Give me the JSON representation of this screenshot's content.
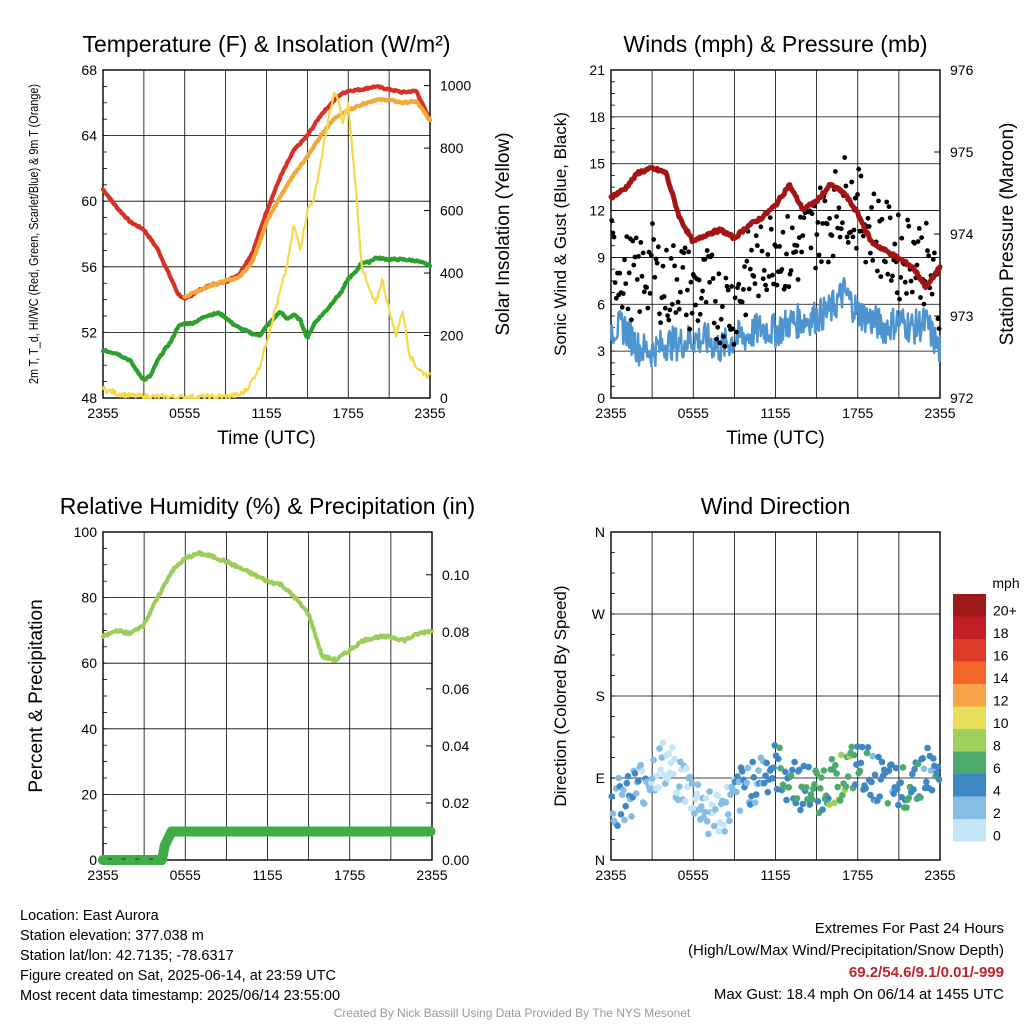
{
  "chart_data": [
    {
      "type": "line",
      "title": "Temperature (F) & Insolation (W/m²)",
      "xlabel": "Time (UTC)",
      "ylabel": "2m T, T_d, HI/WC (Red, Green, Scarlet/Blue) & 9m T (Orange)",
      "y2label": "Solar Insolation (Yellow)",
      "x_ticks": [
        "2355",
        "0555",
        "1155",
        "1755",
        "2355"
      ],
      "ylim": [
        48,
        70
      ],
      "y_ticks": [
        48,
        52,
        56,
        60,
        64,
        68
      ],
      "y2lim": [
        0,
        1050
      ],
      "y2_ticks": [
        0,
        200,
        400,
        600,
        800,
        1000
      ],
      "grid": true,
      "series": [
        {
          "color": "#d73027",
          "axis": "left",
          "x": [
            0,
            1,
            2,
            3,
            4,
            5,
            5.5,
            6,
            7,
            8,
            9,
            10,
            11,
            12,
            13,
            14,
            15,
            16,
            17,
            17.5,
            18,
            19,
            20,
            21,
            22,
            23,
            24
          ],
          "values": [
            62,
            60.8,
            59.8,
            59.3,
            58,
            56,
            55,
            54.6,
            55.2,
            55.6,
            55.8,
            56.3,
            57.8,
            60.5,
            62.8,
            64.6,
            65.6,
            67.0,
            68.0,
            68.4,
            68.6,
            68.7,
            68.9,
            68.7,
            68.5,
            68.6,
            66.6
          ]
        },
        {
          "color": "#f2a93b",
          "axis": "left",
          "x": [
            6,
            8,
            10,
            11,
            12,
            13,
            14,
            15,
            16,
            17,
            18,
            19,
            20,
            21,
            22,
            23,
            24
          ],
          "values": [
            54.8,
            55.6,
            56.1,
            57.2,
            59.8,
            61.5,
            63,
            64.2,
            65.6,
            66.8,
            67.3,
            67.7,
            68,
            68,
            67.8,
            67.9,
            66.6
          ]
        },
        {
          "color": "#2ca02c",
          "axis": "left",
          "x": [
            0,
            1,
            2,
            2.5,
            3,
            3.5,
            4,
            4.5,
            5,
            5.5,
            6,
            6.5,
            7,
            7.5,
            8,
            8.5,
            9,
            9.5,
            10,
            10.5,
            11,
            11.5,
            12,
            12.5,
            13,
            13.5,
            14,
            14.5,
            15,
            15.5,
            16,
            16.5,
            17,
            17.5,
            18,
            18.5,
            19,
            19.5,
            20,
            21,
            22,
            23,
            24
          ],
          "values": [
            51.2,
            51,
            50.5,
            49.8,
            49.2,
            49.5,
            50.5,
            51.2,
            51.8,
            52.8,
            53.0,
            53.0,
            53.2,
            53.5,
            53.6,
            53.7,
            53.4,
            53.0,
            52.7,
            52.5,
            52.3,
            52.2,
            52.8,
            53.3,
            53.8,
            53.3,
            53.6,
            53.2,
            52.0,
            53.0,
            53.5,
            54.0,
            54.6,
            55.1,
            56,
            56.4,
            57.1,
            57.1,
            57.4,
            57.3,
            57.3,
            57.2,
            56.9
          ]
        },
        {
          "color": "#f5d94a",
          "axis": "right",
          "x": [
            0,
            1,
            2,
            3,
            4,
            5,
            6,
            7,
            8,
            9,
            10,
            10.5,
            11,
            11.5,
            12,
            12.5,
            13,
            13.5,
            14,
            14.5,
            15,
            15.5,
            16,
            16.5,
            17,
            17.3,
            17.6,
            18,
            18.5,
            19,
            19.5,
            20,
            20.5,
            21,
            21.5,
            22,
            22.5,
            23,
            23.5,
            24
          ],
          "values": [
            30,
            15,
            8,
            5,
            4,
            3,
            3,
            3,
            4,
            5,
            10,
            25,
            60,
            100,
            180,
            260,
            340,
            420,
            550,
            480,
            600,
            640,
            760,
            880,
            980,
            950,
            880,
            940,
            700,
            420,
            350,
            300,
            380,
            280,
            200,
            280,
            140,
            100,
            80,
            70
          ]
        }
      ]
    },
    {
      "type": "line",
      "title": "Winds (mph) & Pressure (mb)",
      "xlabel": "Time (UTC)",
      "ylabel": "Sonic Wind & Gust (Blue, Black)",
      "y2label": "Station Pressure (Maroon)",
      "x_ticks": [
        "2355",
        "0555",
        "1155",
        "1755",
        "2355"
      ],
      "ylim": [
        0,
        21
      ],
      "y_ticks": [
        0,
        3,
        6,
        9,
        12,
        15,
        18,
        21
      ],
      "y2lim": [
        972,
        976
      ],
      "y2_ticks": [
        972,
        973,
        974,
        975,
        976
      ],
      "grid": true,
      "series": [
        {
          "name": "Pressure",
          "color": "#a31515",
          "axis": "right",
          "x": [
            0,
            1,
            2,
            3,
            4,
            5,
            6,
            7,
            8,
            9,
            10,
            11,
            12,
            13,
            14,
            15,
            16,
            17,
            18,
            19,
            20,
            21,
            22,
            23,
            24
          ],
          "values": [
            974.45,
            974.55,
            974.75,
            974.8,
            974.75,
            974.2,
            973.9,
            974.0,
            974.05,
            973.95,
            974.1,
            974.2,
            974.35,
            974.6,
            974.3,
            974.4,
            974.6,
            974.5,
            974.25,
            973.9,
            973.8,
            973.7,
            973.6,
            973.35,
            973.6
          ]
        },
        {
          "name": "Sonic Wind",
          "color": "#4d94d0",
          "axis": "left",
          "x": [
            0,
            1,
            2,
            3,
            4,
            5,
            6,
            7,
            8,
            9,
            10,
            11,
            12,
            13,
            14,
            15,
            16,
            17,
            18,
            19,
            20,
            21,
            22,
            23,
            24
          ],
          "values": [
            4.5,
            4.5,
            3.2,
            3.0,
            3.5,
            3.5,
            3.8,
            3.7,
            3.2,
            3.8,
            4.0,
            4.5,
            4.3,
            4.8,
            5.0,
            5.2,
            5.6,
            6.8,
            5.5,
            5.0,
            4.5,
            5.0,
            4.5,
            4.8,
            3.0
          ]
        },
        {
          "name": "Gust",
          "color": "#000000",
          "axis": "left",
          "type": "scatter",
          "x": [
            0,
            1,
            2,
            3,
            4,
            5,
            6,
            7,
            8,
            9,
            10,
            11,
            12,
            13,
            14,
            15,
            16,
            17,
            18,
            19,
            20,
            21,
            22,
            23,
            24
          ],
          "values": [
            9,
            8,
            7.5,
            8.5,
            7,
            8,
            6.5,
            7,
            6,
            6,
            8,
            9,
            10,
            9,
            10,
            11,
            11.5,
            13,
            12,
            11,
            10,
            9,
            9.5,
            8.5,
            6
          ]
        }
      ]
    },
    {
      "type": "line",
      "title": "Relative Humidity (%) & Precipitation (in)",
      "ylabel": "Percent & Precipitation",
      "x_ticks": [
        "2355",
        "0555",
        "1155",
        "1755",
        "2355"
      ],
      "ylim": [
        0,
        100
      ],
      "y_ticks": [
        0,
        20,
        40,
        60,
        80,
        100
      ],
      "y2lim": [
        0,
        0.115
      ],
      "y2_ticks": [
        "0.00",
        "0.02",
        "0.04",
        "0.06",
        "0.08",
        "0.10"
      ],
      "grid": true,
      "series": [
        {
          "name": "Relative Humidity",
          "color": "#9ccc5a",
          "axis": "left",
          "x": [
            0,
            1,
            2,
            3,
            4,
            5,
            6,
            7,
            8,
            9,
            10,
            11,
            12,
            13,
            14,
            15,
            16,
            17,
            18,
            19,
            20,
            21,
            22,
            23,
            24
          ],
          "values": [
            68,
            70,
            69,
            72,
            80,
            88,
            92,
            93.5,
            92.5,
            91,
            89,
            87,
            85,
            84,
            80,
            75,
            62,
            61,
            64,
            67,
            68,
            68,
            67,
            69,
            70
          ]
        },
        {
          "name": "Precipitation",
          "color": "#3fae49",
          "axis": "right",
          "x": [
            0,
            4.3,
            4.5,
            5,
            24
          ],
          "values": [
            0.0,
            0.0,
            0.005,
            0.01,
            0.01
          ]
        }
      ]
    },
    {
      "type": "scatter",
      "title": "Wind Direction",
      "ylabel": "Direction (Colored By Speed)",
      "x_ticks": [
        "2355",
        "0555",
        "1155",
        "1755",
        "2355"
      ],
      "y_ticks": [
        "N",
        "E",
        "S",
        "W",
        "N"
      ],
      "ylim": [
        0,
        360
      ],
      "grid": true,
      "legend": {
        "title": "mph",
        "placement": "right",
        "labels": [
          "20+",
          "18",
          "16",
          "14",
          "12",
          "10",
          "8",
          "6",
          "4",
          "2",
          "0"
        ],
        "colors": [
          "#9e1a1a",
          "#c11f25",
          "#de3a2a",
          "#f2662a",
          "#f9a34b",
          "#e8e05a",
          "#9fd05b",
          "#4caa6c",
          "#3f86c4",
          "#85bde4",
          "#c3e5f7"
        ]
      }
    }
  ],
  "info_left": [
    "Location: East Aurora",
    "Station elevation: 377.038 m",
    "Station lat/lon: 42.7135; -78.6317",
    "Figure created on Sat, 2025-06-14, at 23:59 UTC",
    "Most recent data timestamp: 2025/06/14 23:55:00"
  ],
  "info_right": {
    "line1": "Extremes For Past 24 Hours",
    "line2": "(High/Low/Max Wind/Precipitation/Snow Depth)",
    "extremes": "69.2/54.6/9.1/0.01/-999",
    "gust": "Max Gust: 18.4 mph On 06/14 at 1455 UTC"
  },
  "footer": "Created By Nick Bassill Using Data Provided By The NYS Mesonet"
}
